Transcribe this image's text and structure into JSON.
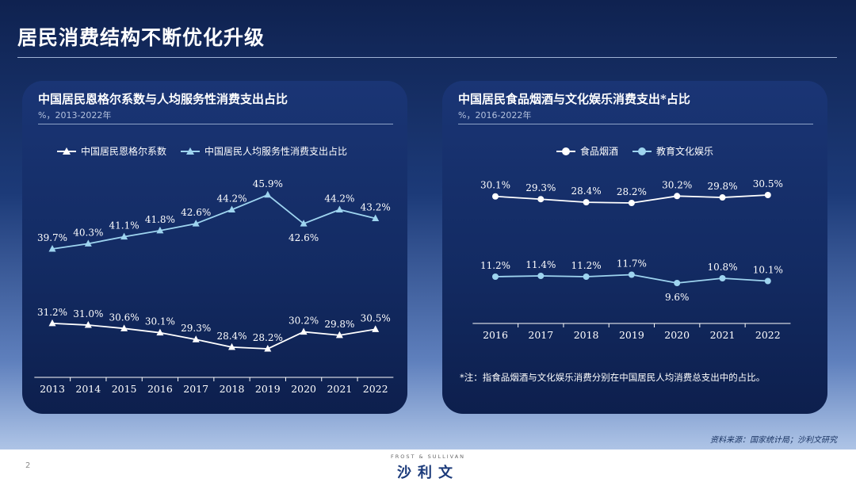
{
  "page": {
    "title": "居民消费结构不断优化升级",
    "page_number": "2"
  },
  "footnote": "*注：指食品烟酒与文化娱乐消费分别在中国居民人均消费总支出中的占比。",
  "source": "资料来源：国家统计局；沙利文研究",
  "brand": {
    "en": "FROST & SULLIVAN",
    "cn": "沙利文"
  },
  "colors": {
    "series_white": "#ffffff",
    "series_light_blue": "#9ed4ef",
    "axis": "#ffffff"
  },
  "chart_data": [
    {
      "type": "line",
      "title": "中国居民恩格尔系数与人均服务性消费支出占比",
      "subtitle": "%，2013-2022年",
      "categories": [
        "2013",
        "2014",
        "2015",
        "2016",
        "2017",
        "2018",
        "2019",
        "2020",
        "2021",
        "2022"
      ],
      "series": [
        {
          "name": "中国居民恩格尔系数",
          "marker": "triangle",
          "color": "#ffffff",
          "values": [
            31.2,
            31.0,
            30.6,
            30.1,
            29.3,
            28.4,
            28.2,
            30.2,
            29.8,
            30.5
          ],
          "labels": [
            "31.2%",
            "31.0%",
            "30.6%",
            "30.1%",
            "29.3%",
            "28.4%",
            "28.2%",
            "30.2%",
            "29.8%",
            "30.5%"
          ]
        },
        {
          "name": "中国居民人均服务性消费支出占比",
          "marker": "triangle",
          "color": "#9ed4ef",
          "values": [
            39.7,
            40.3,
            41.1,
            41.8,
            42.6,
            44.2,
            45.9,
            42.6,
            44.2,
            43.2
          ],
          "labels": [
            "39.7%",
            "40.3%",
            "41.1%",
            "41.8%",
            "42.6%",
            "44.2%",
            "45.9%",
            "42.6%",
            "44.2%",
            "43.2%"
          ]
        }
      ],
      "legend_position": "top",
      "grid": false
    },
    {
      "type": "line",
      "title": "中国居民食品烟酒与文化娱乐消费支出*占比",
      "subtitle": "%，2016-2022年",
      "categories": [
        "2016",
        "2017",
        "2018",
        "2019",
        "2020",
        "2021",
        "2022"
      ],
      "series": [
        {
          "name": "食品烟酒",
          "marker": "circle",
          "color": "#ffffff",
          "values": [
            30.1,
            29.3,
            28.4,
            28.2,
            30.2,
            29.8,
            30.5
          ],
          "labels": [
            "30.1%",
            "29.3%",
            "28.4%",
            "28.2%",
            "30.2%",
            "29.8%",
            "30.5%"
          ]
        },
        {
          "name": "教育文化娱乐",
          "marker": "circle",
          "color": "#9ed4ef",
          "values": [
            11.2,
            11.4,
            11.2,
            11.7,
            9.6,
            10.8,
            10.1
          ],
          "labels": [
            "11.2%",
            "11.4%",
            "11.2%",
            "11.7%",
            "9.6%",
            "10.8%",
            "10.1%"
          ]
        }
      ],
      "legend_position": "top",
      "grid": false
    }
  ]
}
